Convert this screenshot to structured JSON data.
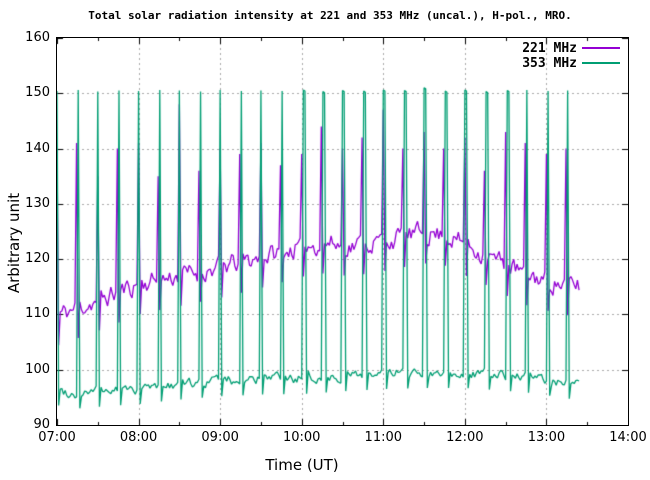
{
  "title": "Total solar radiation intensity at 221 and 353 MHz (uncal.), H-pol., MRO.",
  "axes": {
    "xlabel": "Time (UT)",
    "ylabel": "Arbitrary unit",
    "x_tick_labels": [
      "07:00",
      "08:00",
      "09:00",
      "10:00",
      "11:00",
      "12:00",
      "13:00",
      "14:00"
    ],
    "y_tick_labels": [
      "90",
      "100",
      "110",
      "120",
      "130",
      "140",
      "150",
      "160"
    ]
  },
  "legend": {
    "position": "top-right",
    "items": [
      {
        "label": "221 MHz",
        "color": "#9400d3"
      },
      {
        "label": "353 MHz",
        "color": "#009e73"
      }
    ]
  },
  "chart_data": {
    "type": "line",
    "title": "Total solar radiation intensity at 221 and 353 MHz (uncal.), H-pol., MRO.",
    "xlabel": "Time (UT)",
    "ylabel": "Arbitrary unit",
    "x_unit": "hours UT",
    "xlim": [
      7,
      14
    ],
    "ylim": [
      90,
      160
    ],
    "xticks_hours": [
      7,
      8,
      9,
      10,
      11,
      12,
      13,
      14
    ],
    "minor_xtick_interval_hours": 0.5,
    "yticks": [
      90,
      100,
      110,
      120,
      130,
      140,
      150,
      160
    ],
    "grid": true,
    "grid_color": "#a8a8a8",
    "legend_position": "top-right inside",
    "data_start_hour": 7.0,
    "data_end_hour": 13.4,
    "sampling_step_hours": 0.02,
    "calibration_spikes": {
      "period_minutes": 15,
      "times_hours": [
        7.01,
        7.26,
        7.51,
        7.76,
        8.01,
        8.26,
        8.51,
        8.76,
        9.01,
        9.26,
        9.51,
        9.76,
        10.01,
        10.26,
        10.51,
        10.76,
        11.01,
        11.26,
        11.51,
        11.76,
        12.01,
        12.26,
        12.51,
        12.76,
        13.01,
        13.26
      ]
    },
    "series": [
      {
        "name": "221 MHz",
        "color": "#9400d3",
        "seed": 11,
        "noise_amp": 1.6,
        "baseline_keypoints": [
          [
            7.0,
            109.8
          ],
          [
            7.25,
            111.2
          ],
          [
            7.5,
            112.5
          ],
          [
            7.75,
            114.0
          ],
          [
            8.0,
            115.5
          ],
          [
            8.5,
            117.0
          ],
          [
            9.0,
            118.5
          ],
          [
            9.5,
            120.3
          ],
          [
            10.0,
            122.3
          ],
          [
            10.3,
            123.0
          ],
          [
            10.6,
            122.4
          ],
          [
            11.0,
            123.3
          ],
          [
            11.3,
            124.2
          ],
          [
            11.55,
            124.8
          ],
          [
            11.8,
            124.2
          ],
          [
            12.0,
            122.6
          ],
          [
            12.2,
            121.3
          ],
          [
            12.5,
            119.0
          ],
          [
            12.75,
            117.2
          ],
          [
            13.0,
            116.2
          ],
          [
            13.2,
            115.4
          ],
          [
            13.4,
            115.2
          ]
        ],
        "spike_peaks": [
          140,
          141,
          135,
          140,
          141,
          135,
          148,
          136,
          140,
          139,
          141,
          137,
          139,
          144,
          140,
          142,
          147,
          140,
          143,
          140,
          142,
          136,
          143,
          141,
          139,
          140
        ],
        "spike_dip_offset": -5.5,
        "spike_time_offset_hours": -0.02,
        "long_spike_indices": []
      },
      {
        "name": "353 MHz",
        "color": "#009e73",
        "seed": 99,
        "noise_amp": 0.8,
        "baseline_keypoints": [
          [
            7.0,
            96.4
          ],
          [
            7.2,
            95.7
          ],
          [
            7.4,
            96.0
          ],
          [
            8.0,
            96.6
          ],
          [
            8.5,
            97.4
          ],
          [
            9.0,
            98.0
          ],
          [
            9.5,
            98.3
          ],
          [
            10.0,
            98.4
          ],
          [
            10.5,
            98.9
          ],
          [
            11.0,
            99.3
          ],
          [
            11.5,
            99.5
          ],
          [
            12.0,
            99.5
          ],
          [
            12.4,
            99.1
          ],
          [
            12.8,
            98.6
          ],
          [
            13.0,
            98.2
          ],
          [
            13.2,
            97.7
          ],
          [
            13.4,
            97.3
          ]
        ],
        "spike_peaks": [
          150.4,
          150.6,
          150.3,
          150.5,
          150.4,
          150.6,
          150.5,
          150.3,
          150.6,
          150.4,
          150.5,
          150.4,
          150.6,
          150.3,
          150.5,
          150.4,
          150.6,
          150.5,
          151.0,
          150.4,
          150.6,
          150.3,
          150.5,
          150.6,
          150.4,
          150.5
        ],
        "spike_dip_offset": -2.8,
        "spike_time_offset_hours": 0,
        "long_spike_indices": [
          12,
          13,
          14,
          15,
          16,
          17,
          18,
          19,
          20,
          21,
          22
        ]
      }
    ]
  }
}
